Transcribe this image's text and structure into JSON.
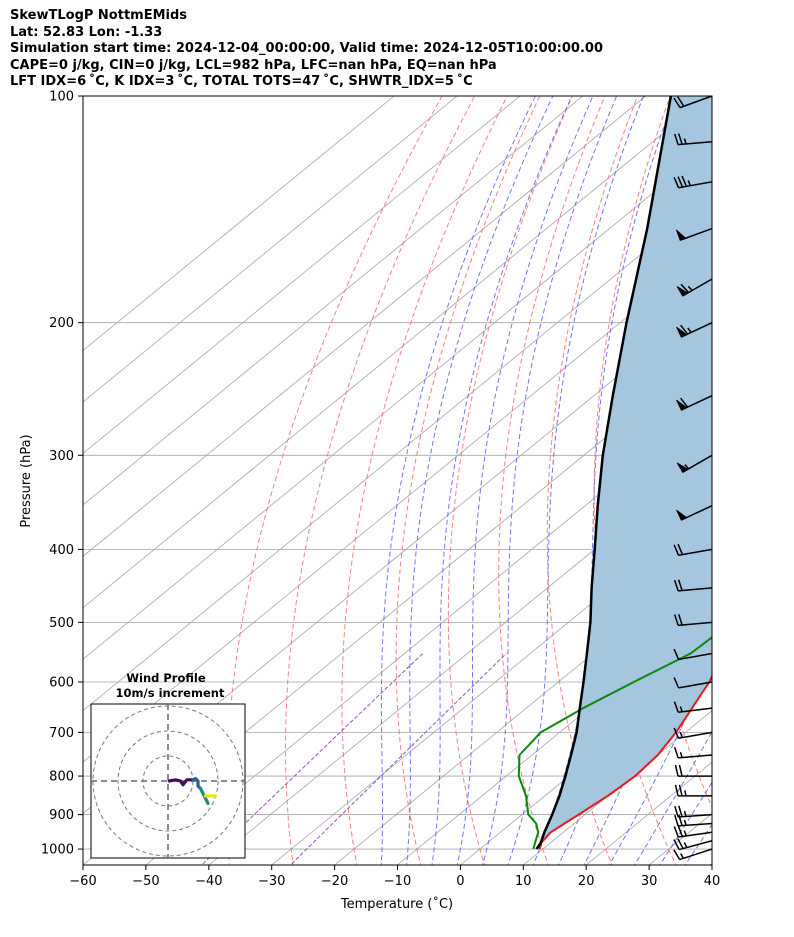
{
  "header": {
    "title": "SkewTLogP NottmEMids",
    "latlon": "Lat: 52.83   Lon: -1.33",
    "times": "Simulation start time: 2024-12-04_00:00:00, Valid time: 2024-12-05T10:00:00.00",
    "indices1": "CAPE=0 j/kg, CIN=0 j/kg, LCL=982 hPa, LFC=nan hPa, EQ=nan hPa",
    "indices2": "LFT IDX=6$^\\circ$C, K IDX=3$^\\circ$C, TOTAL TOTS=47$^\\circ$C, SHWTR_IDX=5$^\\circ$C"
  },
  "header_display": {
    "indices2": "LFT IDX=6 ˚C, K IDX=3 ˚C, TOTAL TOTS=47 ˚C, SHWTR_IDX=5 ˚C"
  },
  "chart_data": {
    "type": "line",
    "subtype": "skew-t log-p",
    "xlabel": "Temperature (˚C)",
    "ylabel": "Pressure (hPa)",
    "xlim": [
      -60,
      40
    ],
    "ylim": [
      1050,
      100
    ],
    "y_scale": "log",
    "x_ticks": [
      "−60",
      "−50",
      "−40",
      "−30",
      "−20",
      "−10",
      "0",
      "10",
      "20",
      "30",
      "40"
    ],
    "y_ticks": [
      "100",
      "200",
      "300",
      "400",
      "500",
      "600",
      "700",
      "800",
      "900",
      "1000"
    ],
    "grid": true,
    "colors": {
      "temperature": "#e8191a",
      "dewpoint": "#0a8a0a",
      "parcel": "#000000",
      "fill": "#a4c6de",
      "dry_adiabat": "#f26b6b",
      "moist_adiabat": "#5a5cf0",
      "mixing_ratio": "#9b4fc8",
      "isotherm": "#a6a6a6"
    },
    "series": [
      {
        "name": "temperature",
        "points": [
          [
            1000,
            9.5
          ],
          [
            980,
            8.5
          ],
          [
            950,
            8
          ],
          [
            925,
            8.5
          ],
          [
            900,
            9
          ],
          [
            850,
            10
          ],
          [
            800,
            10.5
          ],
          [
            750,
            10
          ],
          [
            700,
            8.5
          ],
          [
            600,
            4
          ],
          [
            500,
            -3
          ],
          [
            450,
            -5.5
          ],
          [
            420,
            -7.5
          ],
          [
            400,
            -8
          ],
          [
            380,
            -7.8
          ],
          [
            350,
            -6.8
          ],
          [
            320,
            -6
          ],
          [
            300,
            -6
          ],
          [
            280,
            -6.5
          ],
          [
            250,
            -8.5
          ],
          [
            220,
            -11
          ],
          [
            200,
            -12.5
          ],
          [
            190,
            -12.5
          ],
          [
            180,
            -9
          ],
          [
            170,
            -5
          ],
          [
            160,
            3
          ],
          [
            145,
            8
          ],
          [
            130,
            12
          ],
          [
            115,
            16
          ],
          [
            105,
            17
          ],
          [
            100,
            17
          ]
        ]
      },
      {
        "name": "dewpoint",
        "points": [
          [
            1000,
            8.5
          ],
          [
            980,
            7.5
          ],
          [
            950,
            6
          ],
          [
            925,
            4
          ],
          [
            900,
            1
          ],
          [
            850,
            -3
          ],
          [
            800,
            -8
          ],
          [
            750,
            -12
          ],
          [
            700,
            -13
          ],
          [
            650,
            -11
          ],
          [
            600,
            -8
          ],
          [
            550,
            -4.5
          ],
          [
            500,
            -4
          ],
          [
            450,
            -8
          ],
          [
            420,
            -11
          ],
          [
            400,
            -13
          ],
          [
            380,
            -13
          ],
          [
            350,
            -11
          ],
          [
            320,
            -10
          ],
          [
            300,
            -10
          ],
          [
            280,
            -10.5
          ],
          [
            250,
            -12.5
          ],
          [
            220,
            -15.5
          ],
          [
            200,
            -17
          ],
          [
            190,
            -17.5
          ],
          [
            180,
            -18
          ],
          [
            170,
            -20
          ],
          [
            160,
            -22
          ],
          [
            145,
            -21
          ],
          [
            130,
            -18
          ],
          [
            115,
            -15
          ],
          [
            100,
            -12
          ]
        ]
      },
      {
        "name": "parcel",
        "points": [
          [
            1000,
            9
          ],
          [
            982,
            8.5
          ],
          [
            950,
            7
          ],
          [
            900,
            4.8
          ],
          [
            850,
            2.3
          ],
          [
            800,
            -0.6
          ],
          [
            750,
            -3.8
          ],
          [
            700,
            -7.3
          ],
          [
            650,
            -11.5
          ],
          [
            600,
            -16
          ],
          [
            550,
            -21
          ],
          [
            500,
            -26.5
          ],
          [
            450,
            -33
          ],
          [
            400,
            -40
          ],
          [
            350,
            -48
          ],
          [
            300,
            -57
          ],
          [
            250,
            -67
          ],
          [
            200,
            -79
          ],
          [
            150,
            -94
          ],
          [
            100,
            -116
          ]
        ]
      }
    ],
    "wind_barbs": [
      {
        "p": 1000,
        "speed_kt": 15,
        "dir": 252
      },
      {
        "p": 975,
        "speed_kt": 25,
        "dir": 255
      },
      {
        "p": 950,
        "speed_kt": 25,
        "dir": 262
      },
      {
        "p": 925,
        "speed_kt": 25,
        "dir": 266
      },
      {
        "p": 900,
        "speed_kt": 25,
        "dir": 266
      },
      {
        "p": 850,
        "speed_kt": 25,
        "dir": 270
      },
      {
        "p": 800,
        "speed_kt": 20,
        "dir": 270
      },
      {
        "p": 750,
        "speed_kt": 15,
        "dir": 265
      },
      {
        "p": 700,
        "speed_kt": 15,
        "dir": 260
      },
      {
        "p": 650,
        "speed_kt": 15,
        "dir": 263
      },
      {
        "p": 600,
        "speed_kt": 10,
        "dir": 260
      },
      {
        "p": 550,
        "speed_kt": 10,
        "dir": 260
      },
      {
        "p": 500,
        "speed_kt": 20,
        "dir": 265
      },
      {
        "p": 450,
        "speed_kt": 20,
        "dir": 265
      },
      {
        "p": 400,
        "speed_kt": 20,
        "dir": 260
      },
      {
        "p": 350,
        "speed_kt": 50,
        "dir": 245
      },
      {
        "p": 300,
        "speed_kt": 55,
        "dir": 240
      },
      {
        "p": 250,
        "speed_kt": 60,
        "dir": 245
      },
      {
        "p": 200,
        "speed_kt": 65,
        "dir": 245
      },
      {
        "p": 175,
        "speed_kt": 65,
        "dir": 240
      },
      {
        "p": 150,
        "speed_kt": 50,
        "dir": 250
      },
      {
        "p": 130,
        "speed_kt": 35,
        "dir": 260
      },
      {
        "p": 115,
        "speed_kt": 25,
        "dir": 265
      },
      {
        "p": 100,
        "speed_kt": 20,
        "dir": 250
      }
    ],
    "hodograph": {
      "title": "Wind Profile",
      "subtitle": "10m/s increment",
      "rings_ms": [
        10,
        20,
        30
      ],
      "segments": [
        {
          "color": "#3b0f5e",
          "points": [
            [
              0.5,
              0
            ],
            [
              3,
              0.5
            ],
            [
              5,
              0
            ],
            [
              6,
              -1.5
            ],
            [
              7.5,
              0.5
            ],
            [
              10,
              0.5
            ]
          ]
        },
        {
          "color": "#2e5f8a",
          "points": [
            [
              10,
              0.5
            ],
            [
              11,
              1
            ],
            [
              12,
              0
            ],
            [
              12,
              -2
            ],
            [
              13,
              -3
            ]
          ]
        },
        {
          "color": "#23878a",
          "points": [
            [
              13,
              -3
            ],
            [
              14,
              -5
            ],
            [
              15,
              -7
            ],
            [
              16,
              -9
            ]
          ]
        },
        {
          "color": "#e5e21b",
          "points": [
            [
              15,
              -6
            ],
            [
              16,
              -6
            ],
            [
              19,
              -6
            ]
          ]
        }
      ]
    }
  }
}
